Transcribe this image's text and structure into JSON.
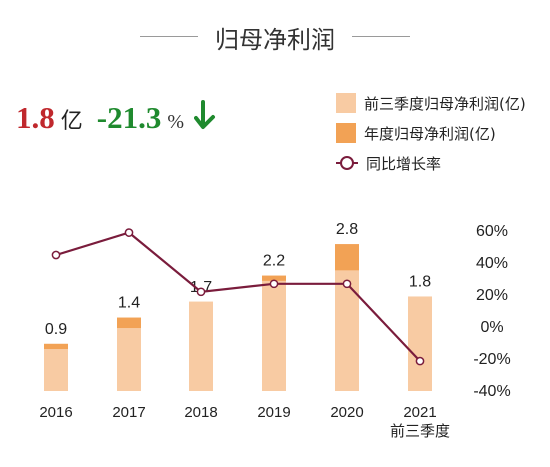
{
  "title": "归母净利润",
  "kpi": {
    "value": "1.8",
    "value_unit": "亿",
    "change": "-21.3",
    "change_unit": "%",
    "value_color": "#c0282d",
    "change_color": "#1f8a2e"
  },
  "legend": [
    {
      "label": "前三季度归母净利润(亿)",
      "color": "#f8cba3",
      "kind": "bar"
    },
    {
      "label": "年度归母净利润(亿)",
      "color": "#f2a255",
      "kind": "bar"
    },
    {
      "label": "同比增长率",
      "color": "#7a1c3c",
      "kind": "line"
    }
  ],
  "chart_data": {
    "type": "bar",
    "categories": [
      "2016",
      "2017",
      "2018",
      "2019",
      "2020",
      "2021\n前三季度"
    ],
    "series": [
      {
        "name": "前三季度归母净利润(亿)",
        "values": [
          0.8,
          1.2,
          1.7,
          2.1,
          2.3,
          1.8
        ],
        "color": "#f8cba3"
      },
      {
        "name": "年度归母净利润(亿)",
        "values": [
          0.9,
          1.4,
          1.7,
          2.2,
          2.8,
          1.8
        ],
        "color": "#f2a255"
      },
      {
        "name": "同比增长率",
        "type": "line",
        "values": [
          45,
          59,
          22,
          27,
          27,
          -21.3
        ],
        "color": "#7a1c3c"
      }
    ],
    "bar_labels": [
      "0.9",
      "1.4",
      "1.7",
      "2.2",
      "2.8",
      "1.8"
    ],
    "y_right": {
      "ticks": [
        "60%",
        "40%",
        "20%",
        "0%",
        "-20%",
        "-40%"
      ],
      "range": [
        -40,
        60
      ]
    },
    "y_left_range": [
      0,
      3.64
    ],
    "grid": false
  }
}
